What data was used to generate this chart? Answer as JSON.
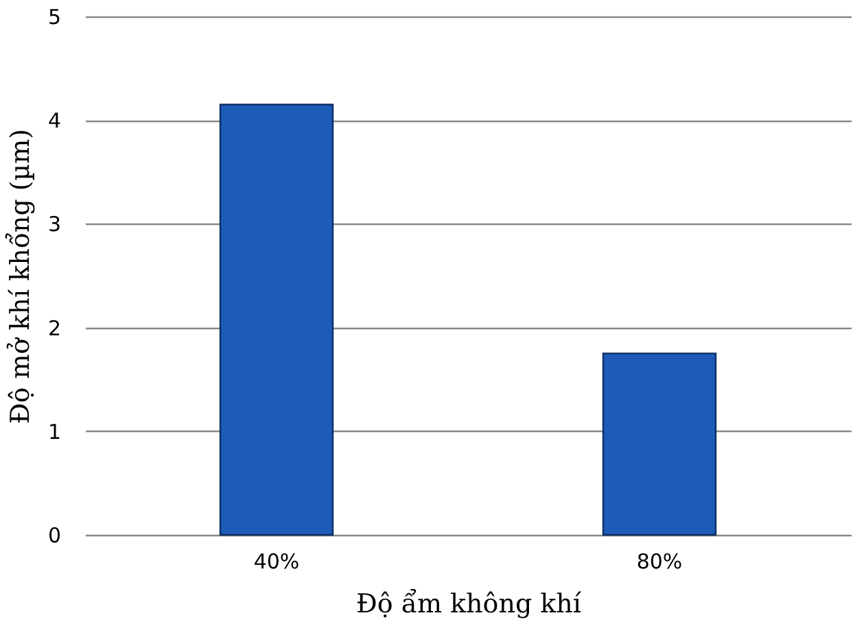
{
  "chart_data": {
    "type": "bar",
    "xlabel": "Độ ẩm không khí",
    "ylabel": "Độ mở khí khổng (µm)",
    "categories": [
      "40%",
      "80%"
    ],
    "values": [
      4.15,
      1.75
    ],
    "color": "#1e5bb8",
    "ylim": [
      0,
      5
    ],
    "yticks": [
      0,
      1,
      2,
      3,
      4,
      5
    ],
    "grid": "y"
  }
}
